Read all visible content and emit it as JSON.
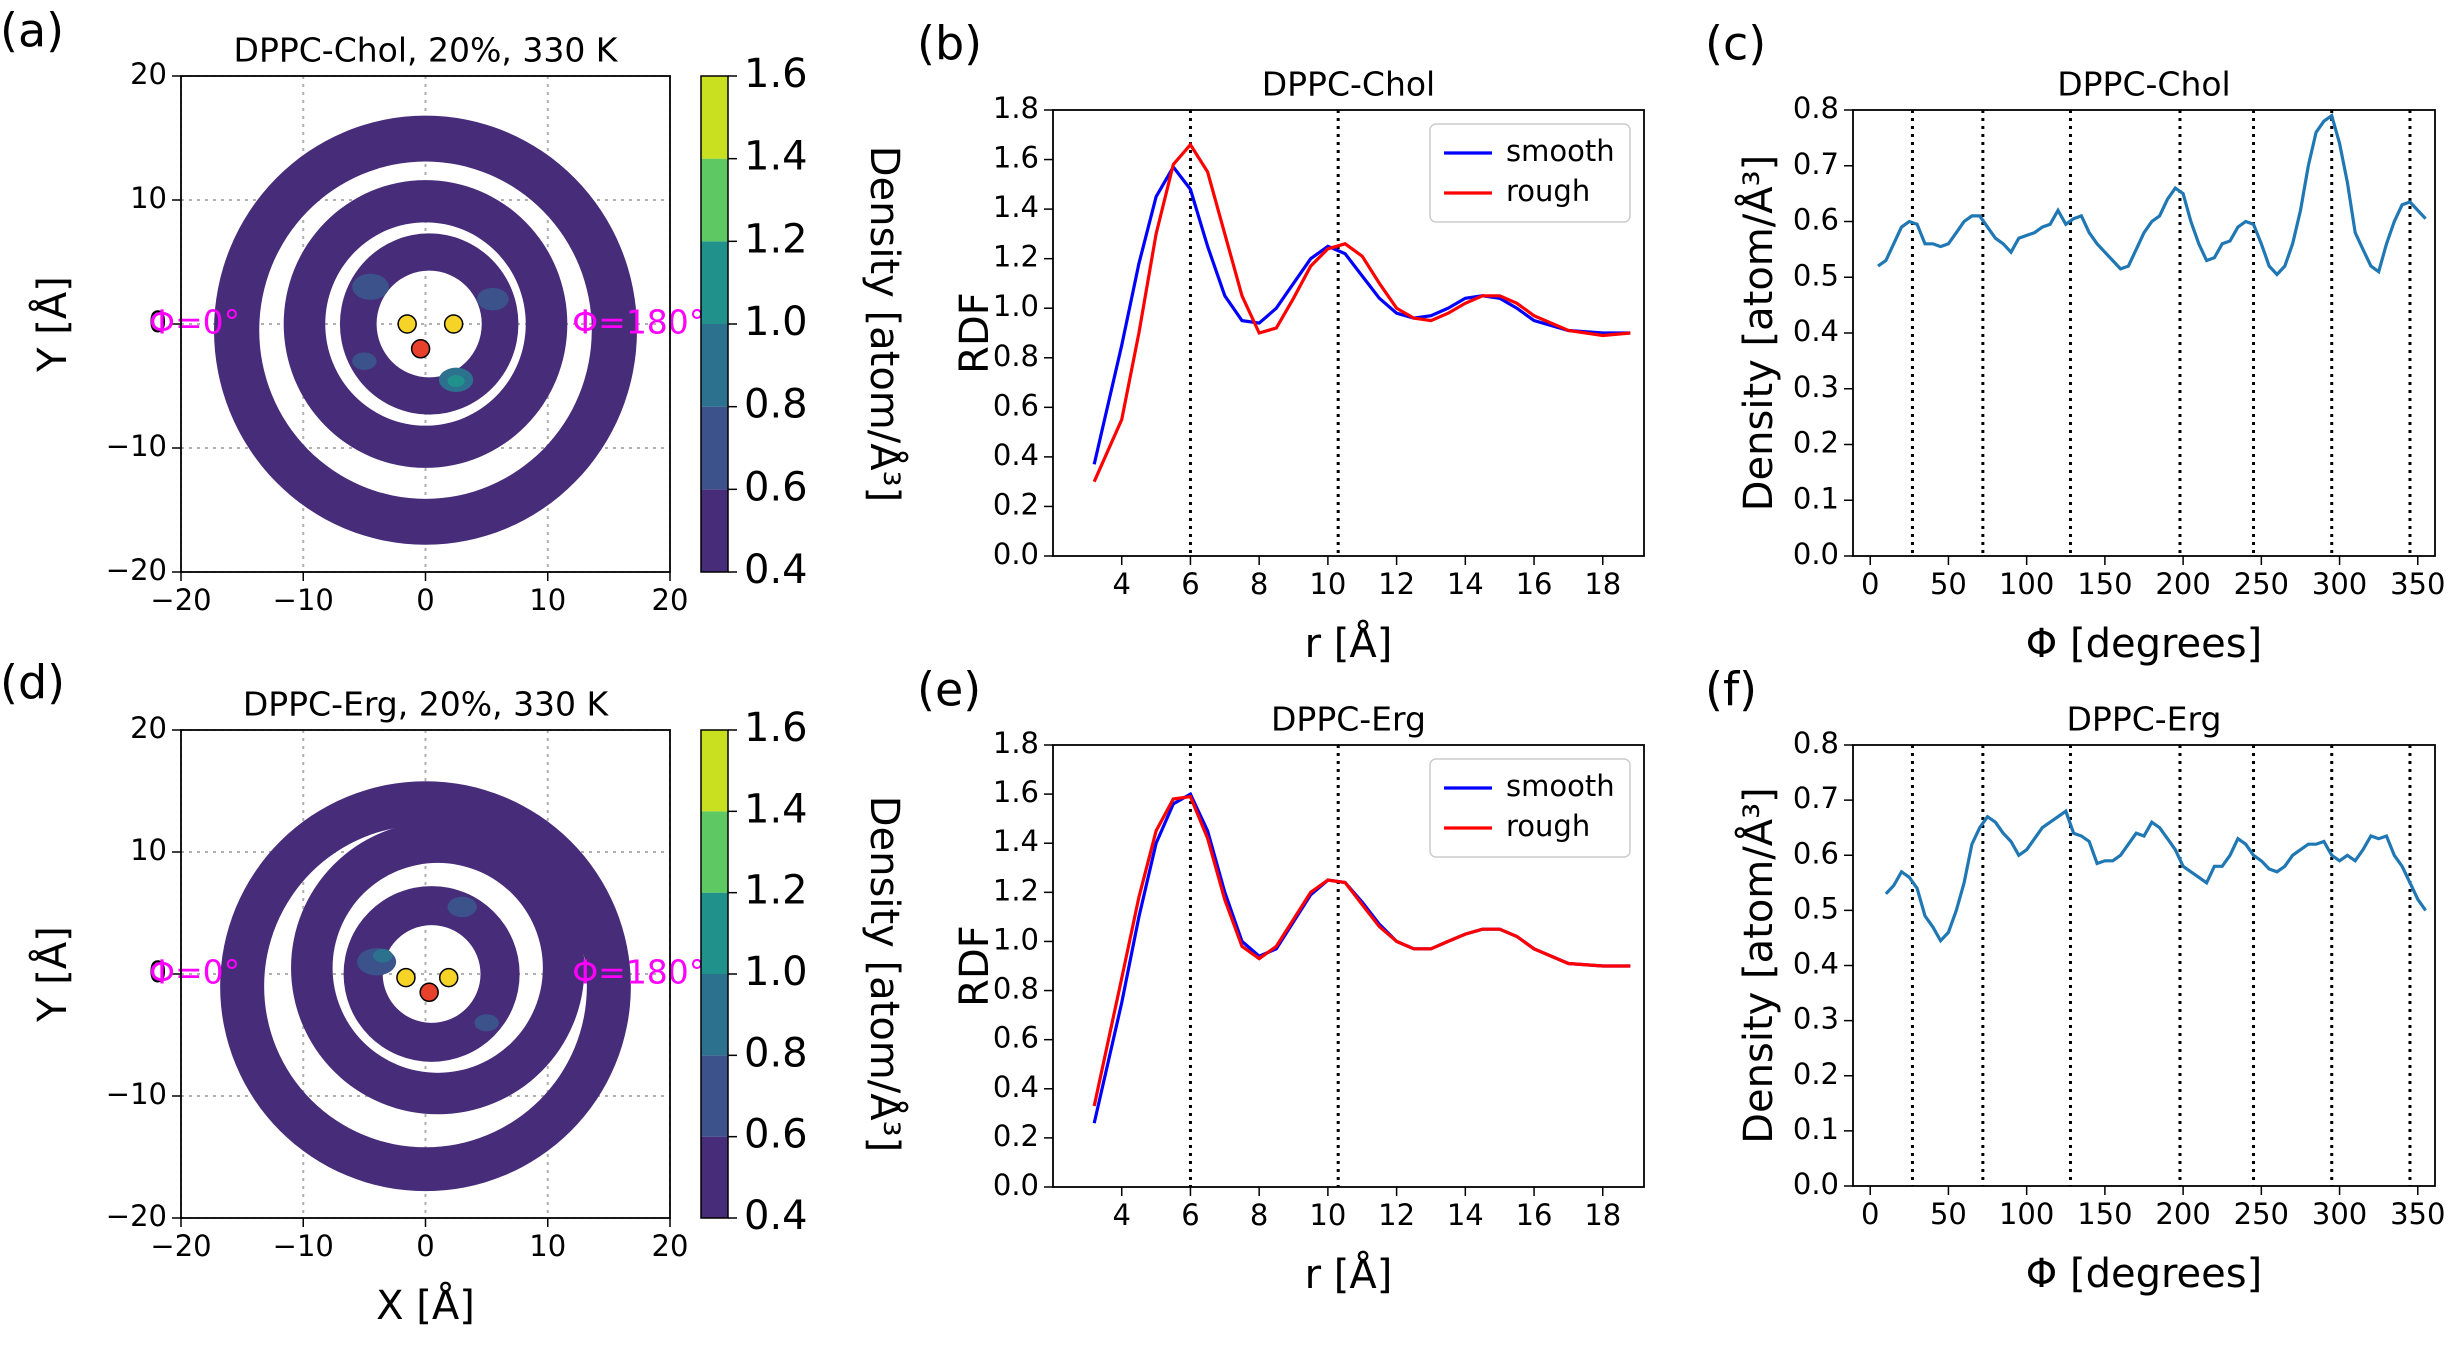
{
  "chart_data": [
    {
      "type": "contour",
      "panel_label": "(a)",
      "title": "DPPC-Chol, 20%, 330 K",
      "ylabel": "Y [Å]",
      "xlim": [
        -20,
        20
      ],
      "ylim": [
        -20,
        20
      ],
      "xticks": [
        {
          "value": -20,
          "label": "−20"
        },
        {
          "value": -10,
          "label": "−10"
        },
        0,
        10,
        20
      ],
      "yticks": [
        {
          "value": -20,
          "label": "−20"
        },
        {
          "value": -10,
          "label": "−10"
        },
        0,
        10,
        20
      ],
      "grid": true,
      "colorbar": {
        "label": "Density [atom/Å³]",
        "ticks": [
          0.4,
          0.6,
          0.8,
          {
            "value": 1.0,
            "label": "1.0"
          },
          1.2,
          1.4,
          1.6
        ],
        "colors": [
          "#472c7a",
          "#3b528b",
          "#2c728e",
          "#21918c",
          "#5ec962",
          "#c8e020"
        ]
      },
      "rings": [
        {
          "cx": 0,
          "cy": -0.5,
          "r_in": 13.6,
          "r_out": 17.3,
          "level": 0
        },
        {
          "cx": 0,
          "cy": 0,
          "r_in": 8.2,
          "r_out": 11.6,
          "level": 0
        },
        {
          "cx": 0.3,
          "cy": 0,
          "r_in": 4.3,
          "r_out": 7.3,
          "level": 0
        }
      ],
      "spots": [
        {
          "x": 2.5,
          "y": -4.5,
          "r": 1.4,
          "level": 2
        },
        {
          "x": 2.5,
          "y": -4.6,
          "r": 0.7,
          "level": 3
        },
        {
          "x": -4.5,
          "y": 3,
          "r": 1.5,
          "level": 1
        },
        {
          "x": 5.5,
          "y": 2,
          "r": 1.3,
          "level": 1
        },
        {
          "x": -5,
          "y": -3,
          "r": 1.0,
          "level": 1
        }
      ],
      "markers": [
        {
          "x": -1.5,
          "y": 0,
          "color": "#f5d327"
        },
        {
          "x": 2.3,
          "y": 0,
          "color": "#f5d327"
        },
        {
          "x": -0.4,
          "y": -2,
          "color": "#e8412b"
        }
      ],
      "annotations": [
        "Φ=0°",
        "Φ=180°"
      ],
      "annotation_color": "#ff00ff"
    },
    {
      "type": "line",
      "panel_label": "(b)",
      "title": "DPPC-Chol",
      "xlabel": "r [Å]",
      "ylabel": "RDF",
      "xlim": [
        2.0,
        19.2
      ],
      "ylim": [
        0,
        1.8
      ],
      "xticks": [
        4,
        6,
        8,
        10,
        12,
        14,
        16,
        18
      ],
      "yticks": [
        {
          "value": 0,
          "label": "0.0"
        },
        0.2,
        0.4,
        0.6,
        0.8,
        {
          "value": 1,
          "label": "1.0"
        },
        1.2,
        1.4,
        1.6,
        1.8
      ],
      "vlines": [
        6,
        10.3
      ],
      "legend": "upper right",
      "x": [
        3.2,
        4,
        4.5,
        5,
        5.5,
        6,
        6.5,
        7,
        7.5,
        8,
        8.5,
        9,
        9.5,
        10,
        10.5,
        11,
        11.5,
        12,
        12.5,
        13,
        13.5,
        14,
        14.5,
        15,
        15.5,
        16,
        17,
        18,
        18.8
      ],
      "series": [
        {
          "name": "smooth",
          "color": "#0000ff",
          "values": [
            0.37,
            0.85,
            1.18,
            1.45,
            1.57,
            1.48,
            1.25,
            1.05,
            0.95,
            0.94,
            1.0,
            1.1,
            1.2,
            1.25,
            1.22,
            1.13,
            1.04,
            0.98,
            0.96,
            0.97,
            1.0,
            1.04,
            1.05,
            1.04,
            1.0,
            0.95,
            0.91,
            0.9,
            0.9
          ]
        },
        {
          "name": "rough",
          "color": "#ff0000",
          "values": [
            0.3,
            0.55,
            0.9,
            1.3,
            1.58,
            1.66,
            1.55,
            1.3,
            1.05,
            0.9,
            0.92,
            1.04,
            1.17,
            1.24,
            1.26,
            1.21,
            1.1,
            1.0,
            0.96,
            0.95,
            0.98,
            1.02,
            1.05,
            1.05,
            1.02,
            0.97,
            0.91,
            0.89,
            0.9
          ]
        }
      ]
    },
    {
      "type": "line",
      "panel_label": "(c)",
      "title": "DPPC-Chol",
      "xlabel": "Φ [degrees]",
      "ylabel": "Density [atom/Å³]",
      "xlim": [
        -11,
        361
      ],
      "ylim": [
        0,
        0.8
      ],
      "xticks": [
        0,
        50,
        100,
        150,
        200,
        250,
        300,
        350
      ],
      "yticks": [
        {
          "value": 0,
          "label": "0.0"
        },
        0.1,
        0.2,
        0.3,
        0.4,
        0.5,
        0.6,
        0.7,
        0.8
      ],
      "vlines": [
        27,
        72,
        128,
        198,
        245,
        295,
        345
      ],
      "x": [
        5,
        10,
        15,
        20,
        25,
        30,
        35,
        40,
        45,
        50,
        55,
        60,
        65,
        70,
        75,
        80,
        85,
        90,
        95,
        100,
        105,
        110,
        115,
        120,
        125,
        130,
        135,
        140,
        145,
        150,
        155,
        160,
        165,
        170,
        175,
        180,
        185,
        190,
        195,
        200,
        205,
        210,
        215,
        220,
        225,
        230,
        235,
        240,
        245,
        250,
        255,
        260,
        265,
        270,
        275,
        280,
        285,
        290,
        295,
        300,
        305,
        310,
        315,
        320,
        325,
        330,
        335,
        340,
        345,
        350,
        355
      ],
      "series": [
        {
          "color": "#1f77b4",
          "values": [
            0.52,
            0.53,
            0.56,
            0.59,
            0.6,
            0.595,
            0.56,
            0.56,
            0.555,
            0.56,
            0.58,
            0.6,
            0.61,
            0.61,
            0.59,
            0.57,
            0.56,
            0.545,
            0.57,
            0.575,
            0.58,
            0.59,
            0.595,
            0.62,
            0.595,
            0.605,
            0.61,
            0.58,
            0.56,
            0.545,
            0.53,
            0.515,
            0.52,
            0.55,
            0.58,
            0.6,
            0.61,
            0.64,
            0.66,
            0.65,
            0.6,
            0.56,
            0.53,
            0.535,
            0.56,
            0.565,
            0.59,
            0.6,
            0.595,
            0.56,
            0.52,
            0.505,
            0.52,
            0.56,
            0.62,
            0.7,
            0.76,
            0.78,
            0.79,
            0.74,
            0.67,
            0.58,
            0.55,
            0.52,
            0.51,
            0.56,
            0.6,
            0.63,
            0.635,
            0.62,
            0.605
          ]
        }
      ]
    },
    {
      "type": "contour",
      "panel_label": "(d)",
      "title": "DPPC-Erg, 20%, 330 K",
      "xlabel": "X [Å]",
      "ylabel": "Y [Å]",
      "xlim": [
        -20,
        20
      ],
      "ylim": [
        -20,
        20
      ],
      "xticks": [
        {
          "value": -20,
          "label": "−20"
        },
        {
          "value": -10,
          "label": "−10"
        },
        0,
        10,
        20
      ],
      "yticks": [
        {
          "value": -20,
          "label": "−20"
        },
        {
          "value": -10,
          "label": "−10"
        },
        0,
        10,
        20
      ],
      "grid": true,
      "colorbar": {
        "label": "Density [atom/Å³]",
        "ticks": [
          0.4,
          0.6,
          0.8,
          {
            "value": 1.0,
            "label": "1.0"
          },
          1.2,
          1.4,
          1.6
        ],
        "colors": [
          "#472c7a",
          "#3b528b",
          "#2c728e",
          "#21918c",
          "#5ec962",
          "#c8e020"
        ]
      },
      "rings": [
        {
          "cx": 0,
          "cy": -1,
          "r_in": 13.2,
          "r_out": 16.8,
          "level": 0
        },
        {
          "cx": 1,
          "cy": 0.5,
          "r_in": 8.6,
          "r_out": 12.0,
          "level": 0
        },
        {
          "cx": 0.5,
          "cy": 0,
          "r_in": 4.0,
          "r_out": 7.2,
          "level": 0
        }
      ],
      "spots": [
        {
          "x": -4,
          "y": 1,
          "r": 1.6,
          "level": 1
        },
        {
          "x": 3,
          "y": 5.5,
          "r": 1.2,
          "level": 1
        },
        {
          "x": 5,
          "y": -4,
          "r": 1.0,
          "level": 1
        },
        {
          "x": -3.5,
          "y": 1.5,
          "r": 0.8,
          "level": 2
        }
      ],
      "markers": [
        {
          "x": -1.6,
          "y": -0.3,
          "color": "#f5d327"
        },
        {
          "x": 1.9,
          "y": -0.3,
          "color": "#f5d327"
        },
        {
          "x": 0.3,
          "y": -1.5,
          "color": "#e8412b"
        }
      ],
      "annotations": [
        "Φ=0°",
        "Φ=180°"
      ],
      "annotation_color": "#ff00ff"
    },
    {
      "type": "line",
      "panel_label": "(e)",
      "title": "DPPC-Erg",
      "xlabel": "r [Å]",
      "ylabel": "RDF",
      "xlim": [
        2.0,
        19.2
      ],
      "ylim": [
        0,
        1.8
      ],
      "xticks": [
        4,
        6,
        8,
        10,
        12,
        14,
        16,
        18
      ],
      "yticks": [
        {
          "value": 0,
          "label": "0.0"
        },
        0.2,
        0.4,
        0.6,
        0.8,
        {
          "value": 1,
          "label": "1.0"
        },
        1.2,
        1.4,
        1.6,
        1.8
      ],
      "vlines": [
        6,
        10.3
      ],
      "legend": "upper right",
      "x": [
        3.2,
        4,
        4.5,
        5,
        5.5,
        6,
        6.5,
        7,
        7.5,
        8,
        8.5,
        9,
        9.5,
        10,
        10.5,
        11,
        11.5,
        12,
        12.5,
        13,
        13.5,
        14,
        14.5,
        15,
        15.5,
        16,
        17,
        18,
        18.8
      ],
      "series": [
        {
          "name": "smooth",
          "color": "#0000ff",
          "values": [
            0.26,
            0.75,
            1.1,
            1.4,
            1.56,
            1.6,
            1.45,
            1.2,
            1.0,
            0.94,
            0.97,
            1.08,
            1.19,
            1.25,
            1.24,
            1.16,
            1.07,
            1.0,
            0.97,
            0.97,
            1.0,
            1.03,
            1.05,
            1.05,
            1.02,
            0.97,
            0.91,
            0.9,
            0.9
          ]
        },
        {
          "name": "rough",
          "color": "#ff0000",
          "values": [
            0.33,
            0.85,
            1.18,
            1.45,
            1.58,
            1.59,
            1.42,
            1.17,
            0.98,
            0.93,
            0.98,
            1.09,
            1.2,
            1.25,
            1.24,
            1.15,
            1.06,
            1.0,
            0.97,
            0.97,
            1.0,
            1.03,
            1.05,
            1.05,
            1.02,
            0.97,
            0.91,
            0.9,
            0.9
          ]
        }
      ]
    },
    {
      "type": "line",
      "panel_label": "(f)",
      "title": "DPPC-Erg",
      "xlabel": "Φ [degrees]",
      "ylabel": "Density [atom/Å³]",
      "xlim": [
        -11,
        361
      ],
      "ylim": [
        0,
        0.8
      ],
      "xticks": [
        0,
        50,
        100,
        150,
        200,
        250,
        300,
        350
      ],
      "yticks": [
        {
          "value": 0,
          "label": "0.0"
        },
        0.1,
        0.2,
        0.3,
        0.4,
        0.5,
        0.6,
        0.7,
        0.8
      ],
      "vlines": [
        27,
        72,
        128,
        198,
        245,
        295,
        345
      ],
      "x": [
        10,
        15,
        20,
        25,
        30,
        35,
        40,
        45,
        50,
        55,
        60,
        65,
        70,
        75,
        80,
        85,
        90,
        95,
        100,
        105,
        110,
        115,
        120,
        125,
        130,
        135,
        140,
        145,
        150,
        155,
        160,
        165,
        170,
        175,
        180,
        185,
        190,
        195,
        200,
        205,
        210,
        215,
        220,
        225,
        230,
        235,
        240,
        245,
        250,
        255,
        260,
        265,
        270,
        275,
        280,
        285,
        290,
        295,
        300,
        305,
        310,
        315,
        320,
        325,
        330,
        335,
        340,
        345,
        350,
        355
      ],
      "series": [
        {
          "color": "#1f77b4",
          "values": [
            0.53,
            0.545,
            0.57,
            0.56,
            0.54,
            0.49,
            0.47,
            0.445,
            0.46,
            0.5,
            0.55,
            0.62,
            0.65,
            0.67,
            0.66,
            0.64,
            0.625,
            0.6,
            0.61,
            0.63,
            0.65,
            0.66,
            0.67,
            0.68,
            0.64,
            0.635,
            0.625,
            0.585,
            0.59,
            0.59,
            0.6,
            0.62,
            0.64,
            0.635,
            0.66,
            0.65,
            0.63,
            0.61,
            0.58,
            0.57,
            0.56,
            0.55,
            0.58,
            0.58,
            0.6,
            0.63,
            0.62,
            0.6,
            0.59,
            0.575,
            0.57,
            0.58,
            0.6,
            0.61,
            0.62,
            0.62,
            0.625,
            0.6,
            0.59,
            0.6,
            0.59,
            0.61,
            0.635,
            0.63,
            0.635,
            0.6,
            0.58,
            0.55,
            0.52,
            0.5
          ]
        }
      ]
    }
  ]
}
